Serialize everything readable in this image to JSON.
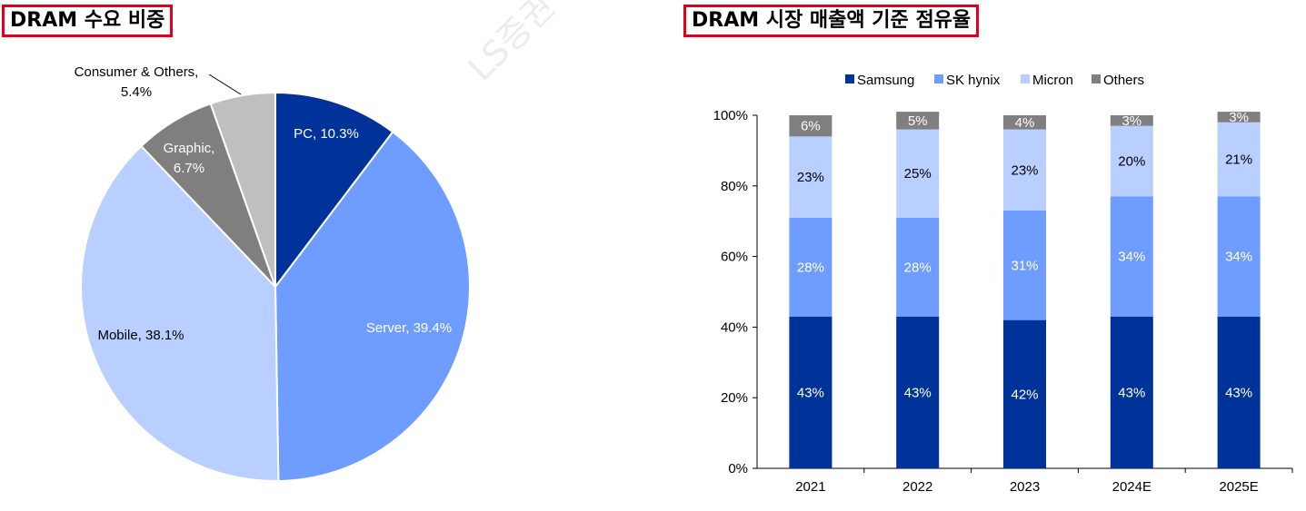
{
  "watermark": "LS증권 리서치",
  "chart_data": [
    {
      "type": "pie",
      "title": "DRAM 수요 비중",
      "slices": [
        {
          "label": "PC",
          "value": 10.3,
          "text": "PC, 10.3%",
          "color": "#003399"
        },
        {
          "label": "Server",
          "value": 39.4,
          "text": "Server, 39.4%",
          "color": "#6f9dff"
        },
        {
          "label": "Mobile",
          "value": 38.1,
          "text": "Mobile, 38.1%",
          "color": "#b9cfff"
        },
        {
          "label": "Graphic",
          "value": 6.7,
          "text": "Graphic,|6.7%",
          "color": "#7f7f7f"
        },
        {
          "label": "Consumer & Others",
          "value": 5.4,
          "text": "Consumer & Others,|5.4%",
          "color": "#bfbfbf"
        }
      ]
    },
    {
      "type": "bar",
      "stacked": true,
      "title": "DRAM 시장 매출액 기준 점유율",
      "categories": [
        "2021",
        "2022",
        "2023",
        "2024E",
        "2025E"
      ],
      "ylim": [
        0,
        100
      ],
      "yticks": [
        "0%",
        "20%",
        "40%",
        "60%",
        "80%",
        "100%"
      ],
      "legend_position": "top",
      "series": [
        {
          "name": "Samsung",
          "color": "#003399",
          "values": [
            43,
            43,
            42,
            43,
            43
          ],
          "labels": [
            "43%",
            "43%",
            "42%",
            "43%",
            "43%"
          ]
        },
        {
          "name": "SK hynix",
          "color": "#6f9dff",
          "values": [
            28,
            28,
            31,
            34,
            34
          ],
          "labels": [
            "28%",
            "28%",
            "31%",
            "34%",
            "34%"
          ]
        },
        {
          "name": "Micron",
          "color": "#b9cfff",
          "values": [
            23,
            25,
            23,
            20,
            21
          ],
          "labels": [
            "23%",
            "25%",
            "23%",
            "20%",
            "21%"
          ]
        },
        {
          "name": "Others",
          "color": "#7f7f7f",
          "values": [
            6,
            5,
            4,
            3,
            3
          ],
          "labels": [
            "6%",
            "5%",
            "4%",
            "3%",
            "3%"
          ]
        }
      ]
    }
  ]
}
